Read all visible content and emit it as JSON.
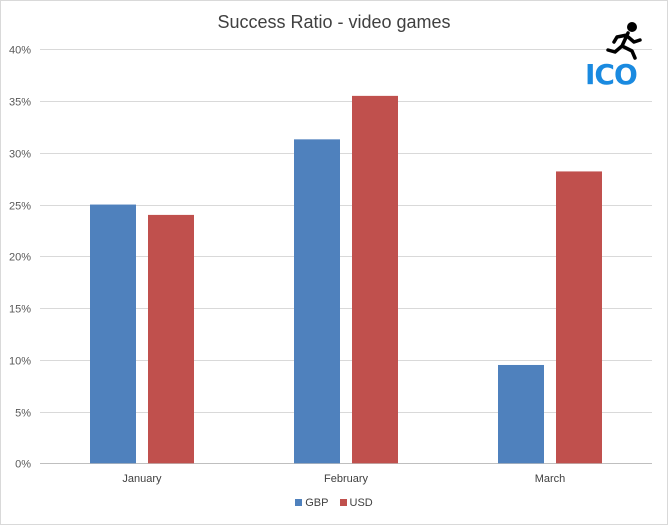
{
  "chart_data": {
    "type": "bar",
    "title": "Success Ratio - video games",
    "categories": [
      "January",
      "February",
      "March"
    ],
    "series": [
      {
        "name": "GBP",
        "color": "#4f81bd",
        "values": [
          0.25,
          0.313,
          0.095
        ]
      },
      {
        "name": "USD",
        "color": "#c0504d",
        "values": [
          0.24,
          0.355,
          0.282
        ]
      }
    ],
    "xlabel": "",
    "ylabel": "",
    "ylim": [
      0,
      0.4
    ],
    "yticks": [
      "0%",
      "5%",
      "10%",
      "15%",
      "20%",
      "25%",
      "30%",
      "35%",
      "40%"
    ],
    "grid": true,
    "legend": "bottom"
  },
  "logo": {
    "text": "ICO",
    "icon": "running-man-icon",
    "color": "#1a8ae0"
  }
}
